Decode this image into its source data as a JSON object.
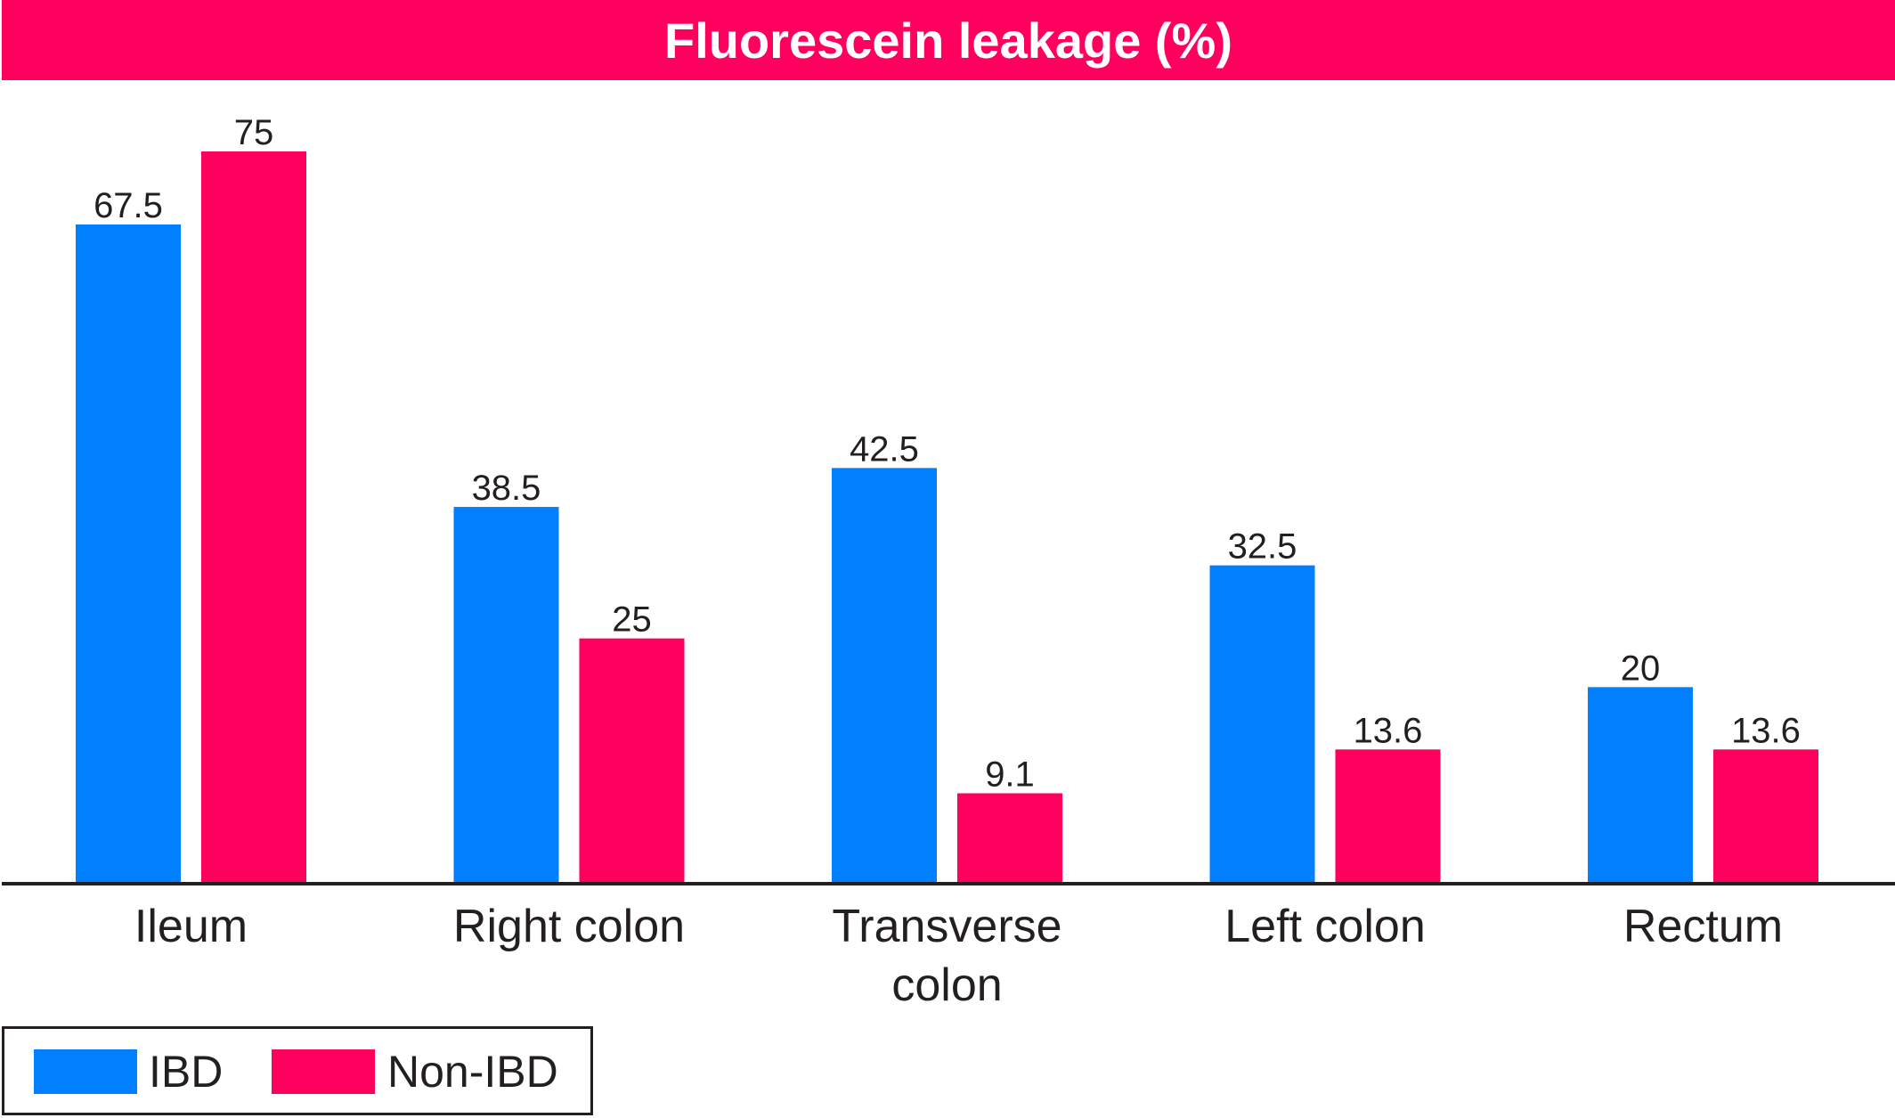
{
  "chart_data": {
    "type": "bar",
    "title": "Fluorescein leakage (%)",
    "categories": [
      "Ileum",
      "Right colon",
      "Transverse colon",
      "Left colon",
      "Rectum"
    ],
    "series": [
      {
        "name": "IBD",
        "color": "#0080ff",
        "values": [
          67.5,
          38.5,
          42.5,
          32.5,
          20
        ]
      },
      {
        "name": "Non-IBD",
        "color": "#ff005f",
        "values": [
          75,
          25,
          9.1,
          13.6,
          13.6
        ]
      }
    ],
    "ylim": [
      0,
      75
    ],
    "grid": false,
    "legend_position": "bottom-left"
  },
  "colors": {
    "title_background": "#ff005f",
    "axis": "#231f20",
    "text": "#231f20"
  }
}
